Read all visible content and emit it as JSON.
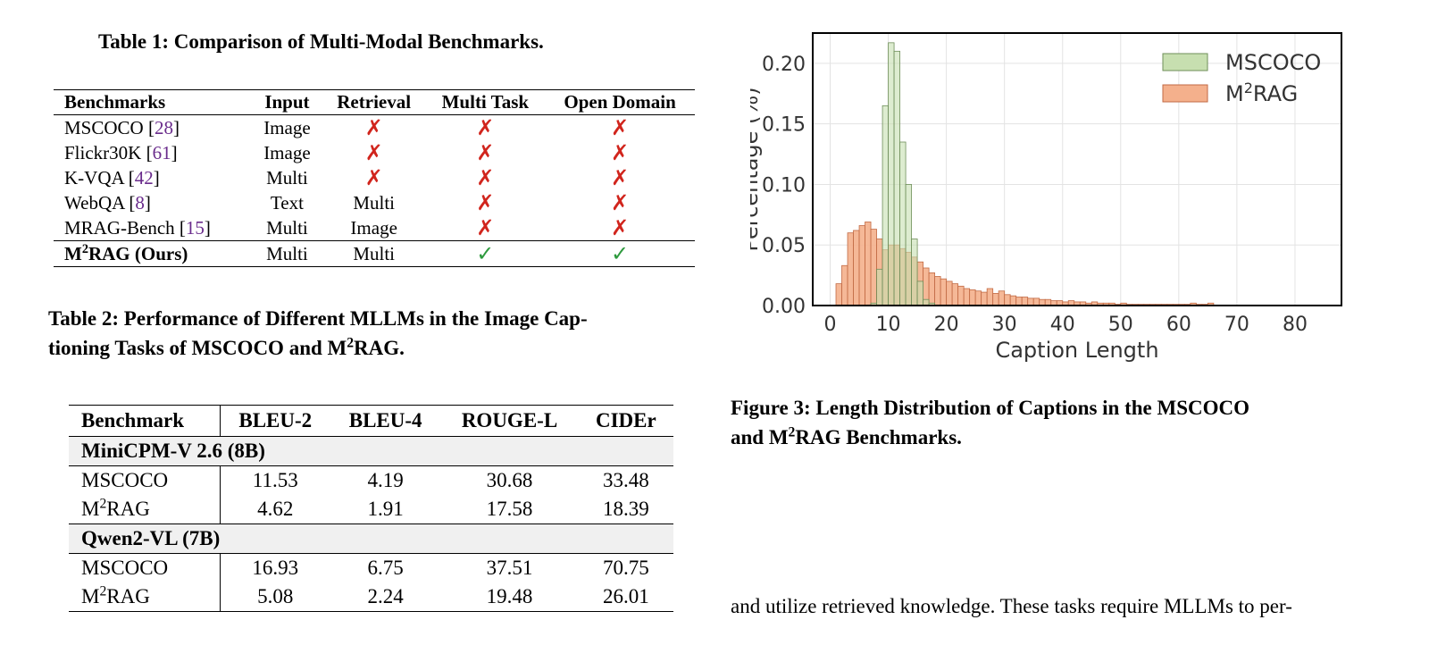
{
  "table1": {
    "caption": "Table 1: Comparison of Multi-Modal Benchmarks.",
    "headers": [
      "Benchmarks",
      "Input",
      "Retrieval",
      "Multi Task",
      "Open Domain"
    ],
    "rows": [
      {
        "name": "MSCOCO",
        "ref": "28",
        "input": "Image",
        "retrieval": "✗",
        "multi_task": "✗",
        "open_domain": "✗"
      },
      {
        "name": "Flickr30K",
        "ref": "61",
        "input": "Image",
        "retrieval": "✗",
        "multi_task": "✗",
        "open_domain": "✗"
      },
      {
        "name": "K-VQA",
        "ref": "42",
        "input": "Multi",
        "retrieval": "✗",
        "multi_task": "✗",
        "open_domain": "✗"
      },
      {
        "name": "WebQA",
        "ref": "8",
        "input": "Text",
        "retrieval": "Multi",
        "multi_task": "✗",
        "open_domain": "✗"
      },
      {
        "name": "MRAG-Bench",
        "ref": "15",
        "input": "Multi",
        "retrieval": "Image",
        "multi_task": "✗",
        "open_domain": "✗"
      },
      {
        "name_pre": "M",
        "name_sup": "2",
        "name_post": "RAG (Ours)",
        "input": "Multi",
        "retrieval": "Multi",
        "multi_task": "✓",
        "open_domain": "✓"
      }
    ]
  },
  "table2": {
    "caption_line1": "Table 2: Performance of Different MLLMs in the Image Cap-",
    "caption_line2_pre": "tioning Tasks of MSCOCO and M",
    "caption_sup": "2",
    "caption_line2_post": "RAG.",
    "headers": [
      "Benchmark",
      "BLEU-2",
      "BLEU-4",
      "ROUGE-L",
      "CIDEr"
    ],
    "groups": [
      {
        "model": "MiniCPM-V 2.6 (8B)",
        "rows": [
          {
            "name": "MSCOCO",
            "bleu2": "11.53",
            "bleu4": "4.19",
            "rougel": "30.68",
            "cider": "33.48"
          },
          {
            "name_pre": "M",
            "name_sup": "2",
            "name_post": "RAG",
            "bleu2": "4.62",
            "bleu4": "1.91",
            "rougel": "17.58",
            "cider": "18.39"
          }
        ]
      },
      {
        "model": "Qwen2-VL (7B)",
        "rows": [
          {
            "name": "MSCOCO",
            "bleu2": "16.93",
            "bleu4": "6.75",
            "rougel": "37.51",
            "cider": "70.75"
          },
          {
            "name_pre": "M",
            "name_sup": "2",
            "name_post": "RAG",
            "bleu2": "5.08",
            "bleu4": "2.24",
            "rougel": "19.48",
            "cider": "26.01"
          }
        ]
      }
    ]
  },
  "figure3": {
    "caption_line1": "Figure 3: Length Distribution of Captions in the MSCOCO",
    "caption_line2_pre": "and M",
    "caption_sup": "2",
    "caption_line2_post": "RAG Benchmarks."
  },
  "body_text": "and utilize retrieved knowledge. These tasks require MLLMs to per-",
  "chart_data": {
    "type": "bar",
    "xlabel": "Caption Length",
    "ylabel": "Percentage (%)",
    "xlim": [
      -3,
      88
    ],
    "ylim": [
      0,
      0.225
    ],
    "xticks": [
      "0",
      "10",
      "20",
      "30",
      "40",
      "50",
      "60",
      "70",
      "80"
    ],
    "yticks": [
      "0.00",
      "0.05",
      "0.10",
      "0.15",
      "0.20"
    ],
    "grid": true,
    "legend_position": "top-right",
    "series": [
      {
        "name": "MSCOCO",
        "color": "#c7dfb0",
        "edge": "#6f8f5a",
        "bin_start": 7,
        "bin_width": 1,
        "values": [
          0.002,
          0.03,
          0.165,
          0.217,
          0.21,
          0.135,
          0.1,
          0.055,
          0.02,
          0.005,
          0.002
        ]
      },
      {
        "name_pre": "M",
        "name_sup": "2",
        "name_post": "RAG",
        "color": "#f4b08c",
        "edge": "#c26a44",
        "bin_start": 1,
        "bin_width": 1,
        "values": [
          0.018,
          0.033,
          0.06,
          0.062,
          0.066,
          0.069,
          0.063,
          0.055,
          0.046,
          0.05,
          0.05,
          0.047,
          0.044,
          0.04,
          0.036,
          0.031,
          0.027,
          0.024,
          0.022,
          0.02,
          0.018,
          0.016,
          0.014,
          0.013,
          0.012,
          0.011,
          0.014,
          0.01,
          0.012,
          0.009,
          0.008,
          0.007,
          0.007,
          0.006,
          0.006,
          0.005,
          0.005,
          0.004,
          0.004,
          0.003,
          0.004,
          0.003,
          0.003,
          0.002,
          0.003,
          0.002,
          0.002,
          0.002,
          0.001,
          0.002,
          0.001,
          0.001,
          0.001,
          0.001,
          0.001,
          0.001,
          0.001,
          0.001,
          0.001,
          0.001,
          0.001,
          0.002,
          0.001,
          0.001,
          0.002
        ]
      }
    ]
  }
}
